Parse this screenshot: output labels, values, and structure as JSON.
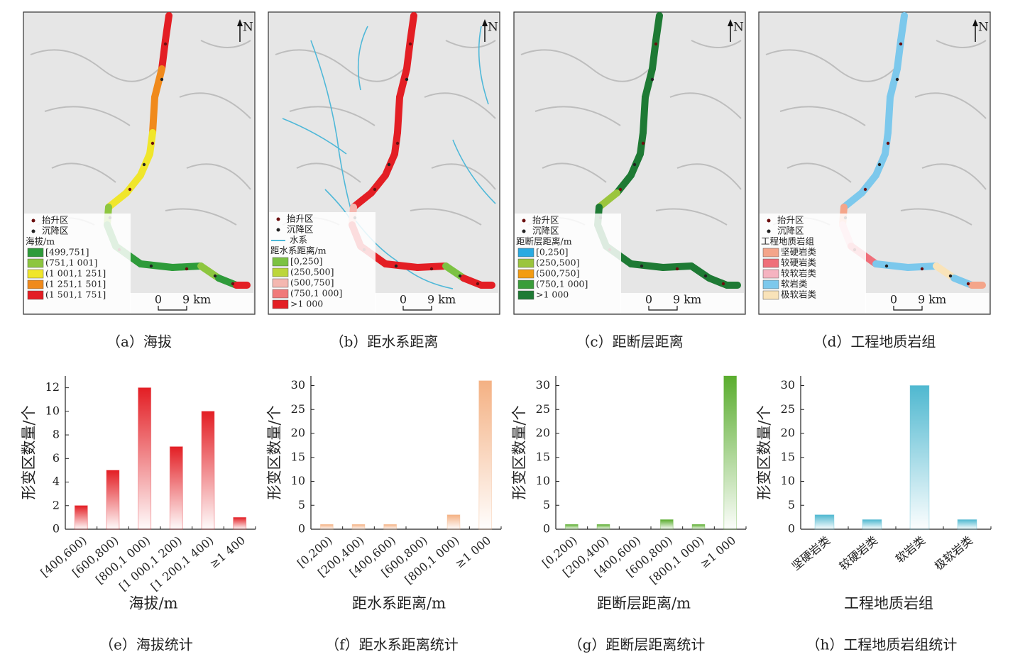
{
  "maps": [
    {
      "caption": "（a）海拔",
      "north": "N",
      "scale": [
        "0",
        "9 km"
      ],
      "points": [
        "抬升区",
        "沉降区"
      ],
      "legend_title": "海拔/m",
      "classes": [
        {
          "label": "[499,751]",
          "color": "#2e9b3a"
        },
        {
          "label": "(751,1 001]",
          "color": "#8dc63f"
        },
        {
          "label": "(1 001,1 251]",
          "color": "#f0e62b"
        },
        {
          "label": "(1 251,1 501]",
          "color": "#f08a1c"
        },
        {
          "label": "(1 501,1 751]",
          "color": "#e31e24"
        }
      ]
    },
    {
      "caption": "（b）距水系距离",
      "north": "N",
      "scale": [
        "0",
        "9 km"
      ],
      "points": [
        "抬升区",
        "沉降区"
      ],
      "water": "水系",
      "legend_title": "距水系距离/m",
      "classes": [
        {
          "label": "[0,250]",
          "color": "#7cc242"
        },
        {
          "label": "(250,500]",
          "color": "#bcd63a"
        },
        {
          "label": "(500,750]",
          "color": "#f4b7b0"
        },
        {
          "label": "(750,1 000]",
          "color": "#f07a7a"
        },
        {
          "label": ">1 000",
          "color": "#e31e24"
        }
      ]
    },
    {
      "caption": "（c）距断层距离",
      "north": "N",
      "scale": [
        "0",
        "9 km"
      ],
      "points": [
        "抬升区",
        "沉降区"
      ],
      "legend_title": "距断层距离/m",
      "classes": [
        {
          "label": "[0,250]",
          "color": "#29aae1"
        },
        {
          "label": "(250,500]",
          "color": "#9bc53d"
        },
        {
          "label": "(500,750]",
          "color": "#f39c12"
        },
        {
          "label": "(750,1 000]",
          "color": "#3a9d3a"
        },
        {
          "label": ">1 000",
          "color": "#1e7a34"
        }
      ]
    },
    {
      "caption": "（d）工程地质岩组",
      "north": "N",
      "scale": [
        "0",
        "9 km"
      ],
      "points": [
        "抬升区",
        "沉降区"
      ],
      "legend_title": "工程地质岩组",
      "classes": [
        {
          "label": "坚硬岩类",
          "color": "#f4a58a"
        },
        {
          "label": "较硬岩类",
          "color": "#ef6f7a"
        },
        {
          "label": "较软岩类",
          "color": "#f5b3c0"
        },
        {
          "label": "软岩类",
          "color": "#7cc8ec"
        },
        {
          "label": "极软岩类",
          "color": "#f9e3b9"
        }
      ]
    }
  ],
  "chart_data": [
    {
      "type": "bar",
      "caption": "（e）海拔统计",
      "xlabel": "海拔/m",
      "ylabel": "形变区数量/个",
      "color": "#e31e24",
      "categories": [
        "[400,600)",
        "[600,800)",
        "[800,1 000)",
        "[1 000,1 200)",
        "[1 200,1 400)",
        "≥1 400"
      ],
      "values": [
        2,
        5,
        12,
        7,
        10,
        1
      ],
      "ylim": [
        0,
        13
      ],
      "yticks": [
        0,
        2,
        4,
        6,
        8,
        10,
        12
      ]
    },
    {
      "type": "bar",
      "caption": "（f）距水系距离统计",
      "xlabel": "距水系距离/m",
      "ylabel": "形变区数量/个",
      "color": "#f4b183",
      "categories": [
        "[0,200)",
        "[200,400)",
        "[400,600)",
        "[600,800)",
        "[800,1 000)",
        "≥1 000"
      ],
      "values": [
        1,
        1,
        1,
        0,
        3,
        31
      ],
      "ylim": [
        0,
        32
      ],
      "yticks": [
        0,
        5,
        10,
        15,
        20,
        25,
        30
      ]
    },
    {
      "type": "bar",
      "caption": "（g）距断层距离统计",
      "xlabel": "距断层距离/m",
      "ylabel": "形变区数量/个",
      "color": "#5aad2e",
      "categories": [
        "[0,200)",
        "[200,400)",
        "[400,600)",
        "[600,800)",
        "[800,1 000)",
        "≥1 000"
      ],
      "values": [
        1,
        1,
        0,
        2,
        1,
        32
      ],
      "ylim": [
        0,
        32
      ],
      "yticks": [
        0,
        5,
        10,
        15,
        20,
        25,
        30
      ]
    },
    {
      "type": "bar",
      "caption": "（h）工程地质岩组统计",
      "xlabel": "工程地质岩组",
      "ylabel": "形变区数量/个",
      "color": "#4fb8d0",
      "categories": [
        "坚硬岩类",
        "较硬岩类",
        "软岩类",
        "极软岩类"
      ],
      "values": [
        3,
        2,
        30,
        2
      ],
      "ylim": [
        0,
        32
      ],
      "yticks": [
        0,
        5,
        10,
        15,
        20,
        25,
        30
      ]
    }
  ]
}
